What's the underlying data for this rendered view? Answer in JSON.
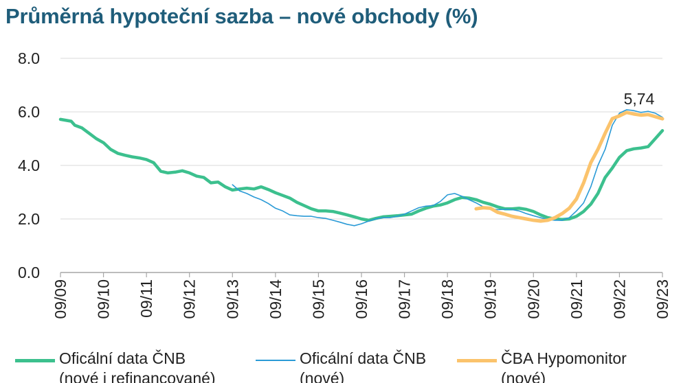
{
  "chart_data": {
    "type": "line",
    "title": "Průměrná hypoteční sazba – nové obchody (%)",
    "xlabel": "",
    "ylabel": "",
    "ylim": [
      0,
      8
    ],
    "y_ticks": [
      "0.0",
      "2.0",
      "4.0",
      "6.0",
      "8.0"
    ],
    "x_ticks": [
      "09/09",
      "09/10",
      "09/11",
      "09/12",
      "09/13",
      "09/14",
      "09/15",
      "09/16",
      "09/17",
      "09/18",
      "09/19",
      "09/20",
      "09/21",
      "09/22",
      "09/23"
    ],
    "xlim": [
      "2009-09",
      "2023-09"
    ],
    "grid": "horizontal",
    "legend_position": "bottom",
    "annotation": "5,74",
    "series": [
      {
        "name": "Oficální data ČNB (nové i refinancované)",
        "color": "#3cc08e",
        "points": [
          [
            "2009-09",
            5.72
          ],
          [
            "2009-12",
            5.65
          ],
          [
            "2010-01",
            5.5
          ],
          [
            "2010-03",
            5.4
          ],
          [
            "2010-05",
            5.2
          ],
          [
            "2010-07",
            5.0
          ],
          [
            "2010-09",
            4.85
          ],
          [
            "2010-11",
            4.6
          ],
          [
            "2011-01",
            4.45
          ],
          [
            "2011-03",
            4.38
          ],
          [
            "2011-05",
            4.32
          ],
          [
            "2011-07",
            4.28
          ],
          [
            "2011-09",
            4.22
          ],
          [
            "2011-11",
            4.1
          ],
          [
            "2012-01",
            3.78
          ],
          [
            "2012-03",
            3.72
          ],
          [
            "2012-05",
            3.75
          ],
          [
            "2012-07",
            3.8
          ],
          [
            "2012-09",
            3.72
          ],
          [
            "2012-11",
            3.6
          ],
          [
            "2013-01",
            3.55
          ],
          [
            "2013-03",
            3.35
          ],
          [
            "2013-05",
            3.38
          ],
          [
            "2013-07",
            3.2
          ],
          [
            "2013-09",
            3.08
          ],
          [
            "2013-11",
            3.12
          ],
          [
            "2014-01",
            3.15
          ],
          [
            "2014-03",
            3.12
          ],
          [
            "2014-05",
            3.2
          ],
          [
            "2014-07",
            3.1
          ],
          [
            "2014-09",
            2.98
          ],
          [
            "2014-11",
            2.88
          ],
          [
            "2015-01",
            2.78
          ],
          [
            "2015-03",
            2.62
          ],
          [
            "2015-05",
            2.5
          ],
          [
            "2015-07",
            2.38
          ],
          [
            "2015-09",
            2.3
          ],
          [
            "2015-11",
            2.3
          ],
          [
            "2016-01",
            2.28
          ],
          [
            "2016-03",
            2.22
          ],
          [
            "2016-05",
            2.15
          ],
          [
            "2016-07",
            2.08
          ],
          [
            "2016-09",
            2.0
          ],
          [
            "2016-11",
            1.95
          ],
          [
            "2017-01",
            2.02
          ],
          [
            "2017-03",
            2.08
          ],
          [
            "2017-05",
            2.1
          ],
          [
            "2017-07",
            2.12
          ],
          [
            "2017-09",
            2.15
          ],
          [
            "2017-11",
            2.18
          ],
          [
            "2018-01",
            2.3
          ],
          [
            "2018-03",
            2.4
          ],
          [
            "2018-05",
            2.48
          ],
          [
            "2018-07",
            2.52
          ],
          [
            "2018-09",
            2.6
          ],
          [
            "2018-11",
            2.72
          ],
          [
            "2019-01",
            2.8
          ],
          [
            "2019-03",
            2.78
          ],
          [
            "2019-05",
            2.72
          ],
          [
            "2019-07",
            2.62
          ],
          [
            "2019-09",
            2.55
          ],
          [
            "2019-11",
            2.45
          ],
          [
            "2020-01",
            2.38
          ],
          [
            "2020-03",
            2.38
          ],
          [
            "2020-05",
            2.4
          ],
          [
            "2020-07",
            2.36
          ],
          [
            "2020-09",
            2.28
          ],
          [
            "2020-11",
            2.15
          ],
          [
            "2021-01",
            2.05
          ],
          [
            "2021-03",
            2.0
          ],
          [
            "2021-05",
            1.98
          ],
          [
            "2021-07",
            2.0
          ],
          [
            "2021-09",
            2.1
          ],
          [
            "2021-11",
            2.28
          ],
          [
            "2022-01",
            2.55
          ],
          [
            "2022-03",
            2.95
          ],
          [
            "2022-05",
            3.55
          ],
          [
            "2022-07",
            3.9
          ],
          [
            "2022-09",
            4.3
          ],
          [
            "2022-11",
            4.55
          ],
          [
            "2023-01",
            4.62
          ],
          [
            "2023-03",
            4.65
          ],
          [
            "2023-05",
            4.7
          ],
          [
            "2023-07",
            5.0
          ],
          [
            "2023-09",
            5.3
          ]
        ]
      },
      {
        "name": "Oficální data ČNB (nové)",
        "color": "#2a9ad6",
        "points": [
          [
            "2013-09",
            3.28
          ],
          [
            "2013-11",
            3.05
          ],
          [
            "2014-01",
            2.95
          ],
          [
            "2014-03",
            2.82
          ],
          [
            "2014-05",
            2.72
          ],
          [
            "2014-07",
            2.58
          ],
          [
            "2014-09",
            2.4
          ],
          [
            "2014-11",
            2.3
          ],
          [
            "2015-01",
            2.15
          ],
          [
            "2015-03",
            2.12
          ],
          [
            "2015-05",
            2.1
          ],
          [
            "2015-07",
            2.1
          ],
          [
            "2015-09",
            2.05
          ],
          [
            "2015-11",
            2.02
          ],
          [
            "2016-01",
            1.95
          ],
          [
            "2016-03",
            1.88
          ],
          [
            "2016-05",
            1.8
          ],
          [
            "2016-07",
            1.75
          ],
          [
            "2016-09",
            1.82
          ],
          [
            "2016-11",
            1.92
          ],
          [
            "2017-01",
            2.0
          ],
          [
            "2017-03",
            2.05
          ],
          [
            "2017-05",
            2.05
          ],
          [
            "2017-07",
            2.1
          ],
          [
            "2017-09",
            2.18
          ],
          [
            "2017-11",
            2.3
          ],
          [
            "2018-01",
            2.42
          ],
          [
            "2018-03",
            2.48
          ],
          [
            "2018-05",
            2.5
          ],
          [
            "2018-07",
            2.65
          ],
          [
            "2018-09",
            2.9
          ],
          [
            "2018-11",
            2.95
          ],
          [
            "2019-01",
            2.85
          ],
          [
            "2019-03",
            2.72
          ],
          [
            "2019-05",
            2.6
          ],
          [
            "2019-07",
            2.45
          ],
          [
            "2019-09",
            2.38
          ],
          [
            "2019-11",
            2.35
          ],
          [
            "2020-01",
            2.36
          ],
          [
            "2020-03",
            2.35
          ],
          [
            "2020-05",
            2.3
          ],
          [
            "2020-07",
            2.2
          ],
          [
            "2020-09",
            2.12
          ],
          [
            "2020-11",
            2.05
          ],
          [
            "2021-01",
            1.98
          ],
          [
            "2021-03",
            1.95
          ],
          [
            "2021-05",
            1.95
          ],
          [
            "2021-07",
            2.05
          ],
          [
            "2021-09",
            2.3
          ],
          [
            "2021-11",
            2.6
          ],
          [
            "2022-01",
            3.2
          ],
          [
            "2022-03",
            4.0
          ],
          [
            "2022-05",
            4.6
          ],
          [
            "2022-07",
            5.5
          ],
          [
            "2022-09",
            5.95
          ],
          [
            "2022-11",
            6.08
          ],
          [
            "2023-01",
            6.05
          ],
          [
            "2023-03",
            5.98
          ],
          [
            "2023-05",
            6.02
          ],
          [
            "2023-07",
            5.95
          ],
          [
            "2023-09",
            5.8
          ]
        ]
      },
      {
        "name": "ČBA Hypomonitor (nové)",
        "color": "#fbc36c",
        "points": [
          [
            "2019-05",
            2.38
          ],
          [
            "2019-07",
            2.42
          ],
          [
            "2019-09",
            2.4
          ],
          [
            "2019-11",
            2.25
          ],
          [
            "2020-01",
            2.18
          ],
          [
            "2020-03",
            2.1
          ],
          [
            "2020-05",
            2.05
          ],
          [
            "2020-07",
            2.0
          ],
          [
            "2020-09",
            1.95
          ],
          [
            "2020-11",
            1.92
          ],
          [
            "2021-01",
            1.95
          ],
          [
            "2021-03",
            2.05
          ],
          [
            "2021-05",
            2.2
          ],
          [
            "2021-07",
            2.4
          ],
          [
            "2021-09",
            2.75
          ],
          [
            "2021-11",
            3.35
          ],
          [
            "2022-01",
            4.1
          ],
          [
            "2022-03",
            4.6
          ],
          [
            "2022-05",
            5.2
          ],
          [
            "2022-07",
            5.75
          ],
          [
            "2022-09",
            5.85
          ],
          [
            "2022-11",
            5.98
          ],
          [
            "2023-01",
            5.92
          ],
          [
            "2023-03",
            5.88
          ],
          [
            "2023-05",
            5.9
          ],
          [
            "2023-07",
            5.82
          ],
          [
            "2023-09",
            5.74
          ]
        ]
      }
    ]
  },
  "legend": [
    {
      "line1": "Oficální data ČNB",
      "line2": "(nové i refinancované)",
      "color": "#3cc08e",
      "style": "thick"
    },
    {
      "line1": "Oficální data ČNB",
      "line2": "(nové)",
      "color": "#2a9ad6",
      "style": "thin"
    },
    {
      "line1": "ČBA Hypomonitor",
      "line2": "(nové)",
      "color": "#fbc36c",
      "style": "thick"
    }
  ]
}
